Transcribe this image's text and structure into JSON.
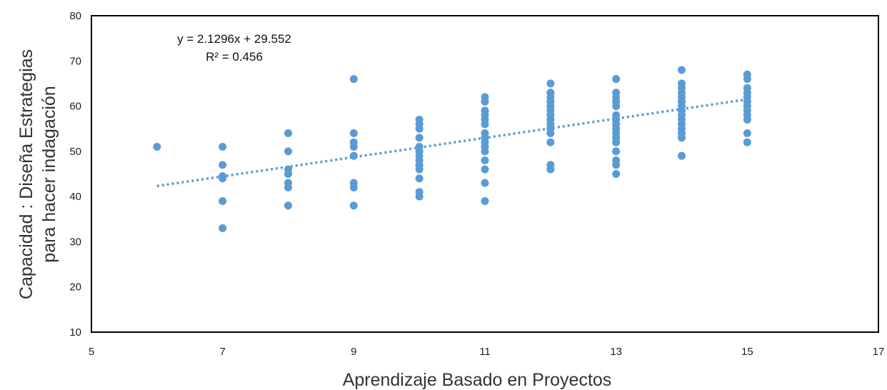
{
  "chart_data": {
    "type": "scatter",
    "xlabel": "Aprendizaje Basado en Proyectos",
    "ylabel_lines": [
      "Capacidad : Diseña Estrategias",
      "para hacer indagación"
    ],
    "xlim": [
      5,
      17
    ],
    "ylim": [
      10,
      80
    ],
    "xticks": [
      5,
      7,
      9,
      11,
      13,
      15,
      17
    ],
    "yticks": [
      10,
      20,
      30,
      40,
      50,
      60,
      70,
      80
    ],
    "grid": false,
    "legend": "none",
    "point_color": "#5b9bd5",
    "trend_color": "#5b9bd5",
    "trendline": {
      "slope": 2.1296,
      "intercept": 29.552,
      "x_range": [
        6,
        15
      ]
    },
    "annotations": {
      "equation": "y = 2.1296x + 29.552",
      "r2": "R² = 0.456"
    },
    "points": [
      [
        6,
        51
      ],
      [
        7,
        51
      ],
      [
        7,
        47
      ],
      [
        7,
        44.5
      ],
      [
        7,
        44
      ],
      [
        7,
        39
      ],
      [
        7,
        33
      ],
      [
        8,
        54
      ],
      [
        8,
        50
      ],
      [
        8,
        46
      ],
      [
        8,
        45
      ],
      [
        8,
        43
      ],
      [
        8,
        42
      ],
      [
        8,
        38
      ],
      [
        9,
        66
      ],
      [
        9,
        54
      ],
      [
        9,
        52
      ],
      [
        9,
        51
      ],
      [
        9,
        49
      ],
      [
        9,
        43
      ],
      [
        9,
        42
      ],
      [
        9,
        38
      ],
      [
        10,
        57
      ],
      [
        10,
        56
      ],
      [
        10,
        55
      ],
      [
        10,
        53
      ],
      [
        10,
        51
      ],
      [
        10,
        50
      ],
      [
        10,
        49
      ],
      [
        10,
        48
      ],
      [
        10,
        47
      ],
      [
        10,
        46
      ],
      [
        10,
        44
      ],
      [
        10,
        41
      ],
      [
        10,
        40
      ],
      [
        11,
        62
      ],
      [
        11,
        61
      ],
      [
        11,
        59
      ],
      [
        11,
        58
      ],
      [
        11,
        57
      ],
      [
        11,
        56
      ],
      [
        11,
        54
      ],
      [
        11,
        53
      ],
      [
        11,
        52
      ],
      [
        11,
        51
      ],
      [
        11,
        50
      ],
      [
        11,
        48
      ],
      [
        11,
        46
      ],
      [
        11,
        43
      ],
      [
        11,
        39
      ],
      [
        12,
        65
      ],
      [
        12,
        63
      ],
      [
        12,
        62
      ],
      [
        12,
        61
      ],
      [
        12,
        60
      ],
      [
        12,
        59
      ],
      [
        12,
        58
      ],
      [
        12,
        57
      ],
      [
        12,
        56
      ],
      [
        12,
        55
      ],
      [
        12,
        54
      ],
      [
        12,
        52
      ],
      [
        12,
        47
      ],
      [
        12,
        46
      ],
      [
        13,
        66
      ],
      [
        13,
        63
      ],
      [
        13,
        62
      ],
      [
        13,
        61
      ],
      [
        13,
        60
      ],
      [
        13,
        58
      ],
      [
        13,
        57
      ],
      [
        13,
        56
      ],
      [
        13,
        55
      ],
      [
        13,
        54
      ],
      [
        13,
        53
      ],
      [
        13,
        52
      ],
      [
        13,
        50
      ],
      [
        13,
        48
      ],
      [
        13,
        47
      ],
      [
        13,
        45
      ],
      [
        14,
        68
      ],
      [
        14,
        65
      ],
      [
        14,
        64
      ],
      [
        14,
        63
      ],
      [
        14,
        62
      ],
      [
        14,
        61
      ],
      [
        14,
        60
      ],
      [
        14,
        59
      ],
      [
        14,
        58
      ],
      [
        14,
        57
      ],
      [
        14,
        56
      ],
      [
        14,
        55
      ],
      [
        14,
        54
      ],
      [
        14,
        53
      ],
      [
        14,
        49
      ],
      [
        15,
        67
      ],
      [
        15,
        66
      ],
      [
        15,
        64
      ],
      [
        15,
        63
      ],
      [
        15,
        62
      ],
      [
        15,
        61
      ],
      [
        15,
        60
      ],
      [
        15,
        59
      ],
      [
        15,
        58
      ],
      [
        15,
        57
      ],
      [
        15,
        54
      ],
      [
        15,
        52
      ]
    ]
  }
}
